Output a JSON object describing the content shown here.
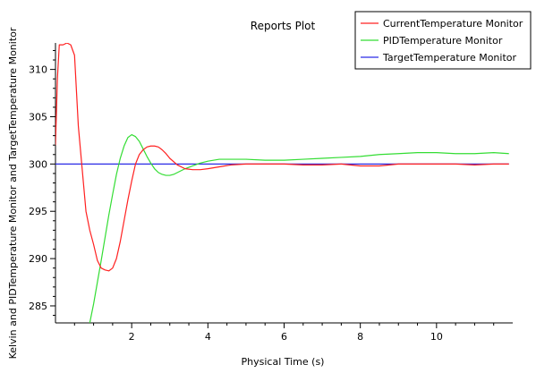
{
  "chart_data": {
    "type": "line",
    "title": "Reports Plot",
    "xlabel": "Physical Time (s)",
    "ylabel": "Kelvin and PIDTemperature Monitor and TargetTemperature Monitor",
    "xlim": [
      0,
      12
    ],
    "ylim": [
      283.2,
      312.8
    ],
    "x_ticks": [
      "2",
      "4",
      "6",
      "8",
      "10"
    ],
    "x_tick_values": [
      2,
      4,
      6,
      8,
      10
    ],
    "y_ticks": [
      "285",
      "290",
      "295",
      "300",
      "305",
      "310"
    ],
    "y_tick_values": [
      285,
      290,
      295,
      300,
      305,
      310
    ],
    "grid": false,
    "legend_position": "top-right",
    "series": [
      {
        "name": "CurrentTemperature Monitor",
        "color": "#ff2020",
        "x": [
          0,
          0.05,
          0.1,
          0.2,
          0.3,
          0.4,
          0.5,
          0.6,
          0.7,
          0.8,
          0.9,
          1.0,
          1.1,
          1.2,
          1.3,
          1.4,
          1.5,
          1.6,
          1.7,
          1.8,
          1.9,
          2.0,
          2.1,
          2.2,
          2.3,
          2.4,
          2.5,
          2.6,
          2.7,
          2.8,
          2.9,
          3.0,
          3.2,
          3.4,
          3.6,
          3.8,
          4.0,
          4.3,
          4.6,
          5.0,
          5.5,
          6.0,
          6.5,
          7.0,
          7.5,
          8.0,
          8.5,
          9.0,
          9.5,
          10.0,
          10.5,
          11.0,
          11.5,
          11.9
        ],
        "y": [
          302,
          309,
          312.6,
          312.6,
          312.8,
          312.6,
          311.5,
          304,
          299.5,
          295,
          293,
          291.5,
          289.8,
          289,
          288.8,
          288.7,
          289,
          290,
          291.8,
          294,
          296.2,
          298.2,
          300,
          301,
          301.5,
          301.8,
          301.9,
          301.9,
          301.8,
          301.5,
          301.1,
          300.6,
          299.9,
          299.5,
          299.4,
          299.4,
          299.5,
          299.7,
          299.9,
          300,
          300,
          300,
          299.9,
          299.9,
          300,
          299.8,
          299.8,
          300,
          300,
          300,
          300,
          299.9,
          300,
          300
        ]
      },
      {
        "name": "PIDTemperature Monitor",
        "color": "#33dd33",
        "x": [
          0.9,
          1.0,
          1.1,
          1.2,
          1.3,
          1.4,
          1.5,
          1.6,
          1.7,
          1.8,
          1.9,
          2.0,
          2.1,
          2.2,
          2.3,
          2.4,
          2.5,
          2.6,
          2.7,
          2.8,
          2.9,
          3.0,
          3.1,
          3.2,
          3.3,
          3.4,
          3.6,
          3.8,
          4.0,
          4.3,
          4.6,
          5.0,
          5.5,
          6.0,
          6.5,
          7.0,
          7.5,
          8.0,
          8.5,
          9.0,
          9.5,
          10.0,
          10.5,
          11.0,
          11.5,
          11.9
        ],
        "y": [
          283.2,
          285.2,
          287.5,
          289.8,
          292.2,
          294.6,
          296.8,
          298.9,
          300.6,
          301.9,
          302.8,
          303.1,
          302.9,
          302.4,
          301.6,
          300.8,
          300.1,
          299.5,
          299.1,
          298.9,
          298.8,
          298.8,
          298.9,
          299.1,
          299.3,
          299.5,
          299.8,
          300.1,
          300.3,
          300.5,
          300.5,
          300.5,
          300.4,
          300.4,
          300.5,
          300.6,
          300.7,
          300.8,
          301,
          301.1,
          301.2,
          301.2,
          301.1,
          301.1,
          301.2,
          301.1
        ]
      },
      {
        "name": "TargetTemperature Monitor",
        "color": "#2a2ae6",
        "x": [
          0,
          11.9
        ],
        "y": [
          300,
          300
        ]
      }
    ]
  }
}
